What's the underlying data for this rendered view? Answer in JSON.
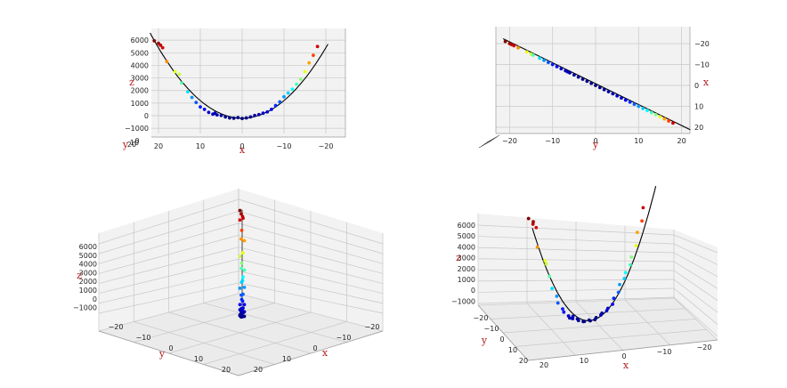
{
  "chart_data": [
    {
      "type": "scatter",
      "panel": "top-left",
      "view": "side view, looking along y",
      "xlabel": "x",
      "ylabel": "y",
      "zlabel": "z",
      "xlim": [
        -20,
        20
      ],
      "ylim": [
        -20,
        20
      ],
      "zlim": [
        -1000,
        6000
      ],
      "x_ticks": [
        "20",
        "10",
        "0",
        "−10",
        "−20"
      ],
      "z_ticks": [
        "6000",
        "5000",
        "4000",
        "3000",
        "2000",
        "1000",
        "0",
        "−1000"
      ],
      "y_ticks": [
        "20",
        "10",
        "0"
      ],
      "colormap": "jet (colored by z)"
    },
    {
      "type": "scatter",
      "panel": "top-right",
      "view": "top view, looking along z",
      "xlabel": "x",
      "ylabel": "y",
      "zlabel": "z",
      "y_ticks": [
        "−20",
        "−10",
        "0",
        "10",
        "20"
      ],
      "x_ticks": [
        "−20",
        "−10",
        "0",
        "10",
        "20"
      ],
      "colormap": "jet (colored by z)"
    },
    {
      "type": "scatter",
      "panel": "bottom-left",
      "view": "3d, viewed from above the origin",
      "xlabel": "x",
      "ylabel": "y",
      "zlabel": "z",
      "z_ticks": [
        "6000",
        "5000",
        "4000",
        "3000",
        "2000",
        "1000",
        "0",
        "−1000"
      ],
      "y_ticks": [
        "−20",
        "−10",
        "0",
        "10",
        "20"
      ],
      "x_ticks": [
        "−20",
        "−10",
        "0",
        "10",
        "20"
      ],
      "colormap": "jet (colored by z)"
    },
    {
      "type": "scatter",
      "panel": "bottom-right",
      "view": "3d perspective",
      "xlabel": "x",
      "ylabel": "y",
      "zlabel": "z",
      "z_ticks": [
        "6000",
        "5000",
        "4000",
        "3000",
        "2000",
        "1000",
        "0",
        "−1000"
      ],
      "y_ticks": [
        "−20",
        "−10",
        "0",
        "10",
        "20"
      ],
      "x_ticks": [
        "20",
        "10",
        "0",
        "−10",
        "−20"
      ],
      "colormap": "jet (colored by z)"
    }
  ],
  "points": {
    "x": [
      21,
      20,
      19.5,
      19,
      18,
      16,
      15,
      14.5,
      13,
      12,
      11,
      10,
      9,
      8,
      7,
      6.5,
      6,
      5,
      4,
      3,
      2,
      1,
      0,
      -1,
      -2,
      -3,
      -4,
      -5,
      -6,
      -7,
      -8,
      -9,
      -10,
      -11,
      -12,
      -13,
      -14,
      -15,
      -16,
      -17,
      -18
    ],
    "z": [
      5950,
      5750,
      5600,
      5400,
      4300,
      3500,
      3300,
      2600,
      1900,
      1450,
      1050,
      700,
      500,
      260,
      120,
      200,
      60,
      20,
      -100,
      -180,
      -200,
      -150,
      -220,
      -180,
      -100,
      20,
      90,
      200,
      300,
      500,
      800,
      1100,
      1500,
      1800,
      2100,
      2500,
      2900,
      3500,
      4200,
      4800,
      5500
    ]
  }
}
